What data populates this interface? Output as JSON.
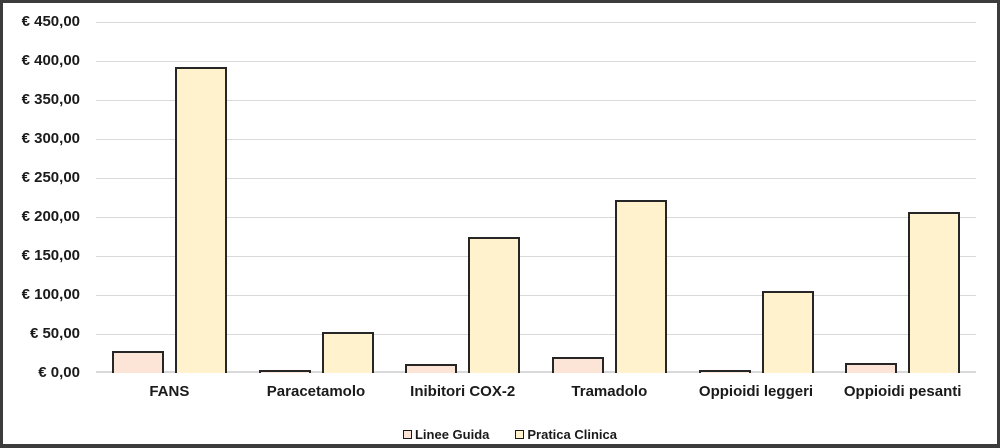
{
  "chart_data": {
    "type": "bar",
    "title": "",
    "xlabel": "",
    "ylabel": "",
    "categories": [
      "FANS",
      "Paracetamolo",
      "Inibitori COX-2",
      "Tramadolo",
      "Oppioidi leggeri",
      "Oppioidi pesanti"
    ],
    "series": [
      {
        "name": "Linee Guida",
        "color": "#fce4d6",
        "values": [
          28,
          2,
          11,
          20,
          2,
          13
        ]
      },
      {
        "name": "Pratica Clinica",
        "color": "#fff2cc",
        "values": [
          392,
          53,
          175,
          222,
          105,
          207
        ]
      }
    ],
    "ylim": [
      0,
      450
    ],
    "ytick_step": 50,
    "ytick_labels": [
      "€ 0,00",
      "€ 50,00",
      "€ 100,00",
      "€ 150,00",
      "€ 200,00",
      "€ 250,00",
      "€ 300,00",
      "€ 350,00",
      "€ 400,00",
      "€ 450,00"
    ],
    "grid": true,
    "legend_position": "bottom",
    "colors": {
      "bar_border": "#262626",
      "gridline": "#d9d9d9",
      "text": "#1a1a1a",
      "frame_border": "#3c3c3c",
      "background": "#ffffff"
    }
  }
}
